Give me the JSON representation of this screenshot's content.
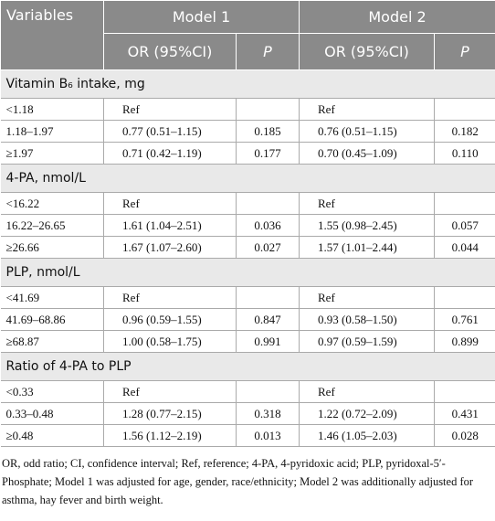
{
  "table": {
    "header": {
      "variables": "Variables",
      "model1": "Model 1",
      "model2": "Model 2",
      "or1": "OR (95%CI)",
      "p1": "P",
      "or2": "OR (95%CI)",
      "p2": "P"
    },
    "sections": [
      {
        "title": "Vitamin B₆ intake, mg",
        "rows": [
          [
            "<1.18",
            "Ref",
            null,
            "Ref",
            null
          ],
          [
            "1.18–1.97",
            "0.77 (0.51–1.15)",
            "0.185",
            "0.76 (0.51–1.15)",
            "0.182"
          ],
          [
            "≥1.97",
            "0.71 (0.42–1.19)",
            "0.177",
            "0.70 (0.45–1.09)",
            "0.110"
          ]
        ]
      },
      {
        "title": "4-PA, nmol/L",
        "rows": [
          [
            "<16.22",
            "Ref",
            null,
            "Ref",
            null
          ],
          [
            "16.22–26.65",
            "1.61 (1.04–2.51)",
            "0.036",
            "1.55 (0.98–2.45)",
            "0.057"
          ],
          [
            "≥26.66",
            "1.67 (1.07–2.60)",
            "0.027",
            "1.57 (1.01–2.44)",
            "0.044"
          ]
        ]
      },
      {
        "title": "PLP, nmol/L",
        "rows": [
          [
            "<41.69",
            "Ref",
            null,
            "Ref",
            null
          ],
          [
            "41.69–68.86",
            "0.96 (0.59–1.55)",
            "0.847",
            "0.93 (0.58–1.50)",
            "0.761"
          ],
          [
            "≥68.87",
            "1.00 (0.58–1.75)",
            "0.991",
            "0.97 (0.59–1.59)",
            "0.899"
          ]
        ]
      },
      {
        "title": "Ratio of 4-PA to PLP",
        "rows": [
          [
            "<0.33",
            "Ref",
            null,
            "Ref",
            null
          ],
          [
            "0.33–0.48",
            "1.28 (0.77–2.15)",
            "0.318",
            "1.22 (0.72–2.09)",
            "0.431"
          ],
          [
            "≥0.48",
            "1.56 (1.12–2.19)",
            "0.013",
            "1.46 (1.05–2.03)",
            "0.028"
          ]
        ]
      }
    ],
    "footnote": "OR, odd ratio; CI, confidence interval; Ref, reference; 4-PA, 4-pyridoxic acid; PLP, pyridoxal-5′-Phosphate; Model 1 was adjusted for age, gender, race/ethnicity; Model 2 was additionally adjusted for asthma, hay fever and birth weight."
  }
}
